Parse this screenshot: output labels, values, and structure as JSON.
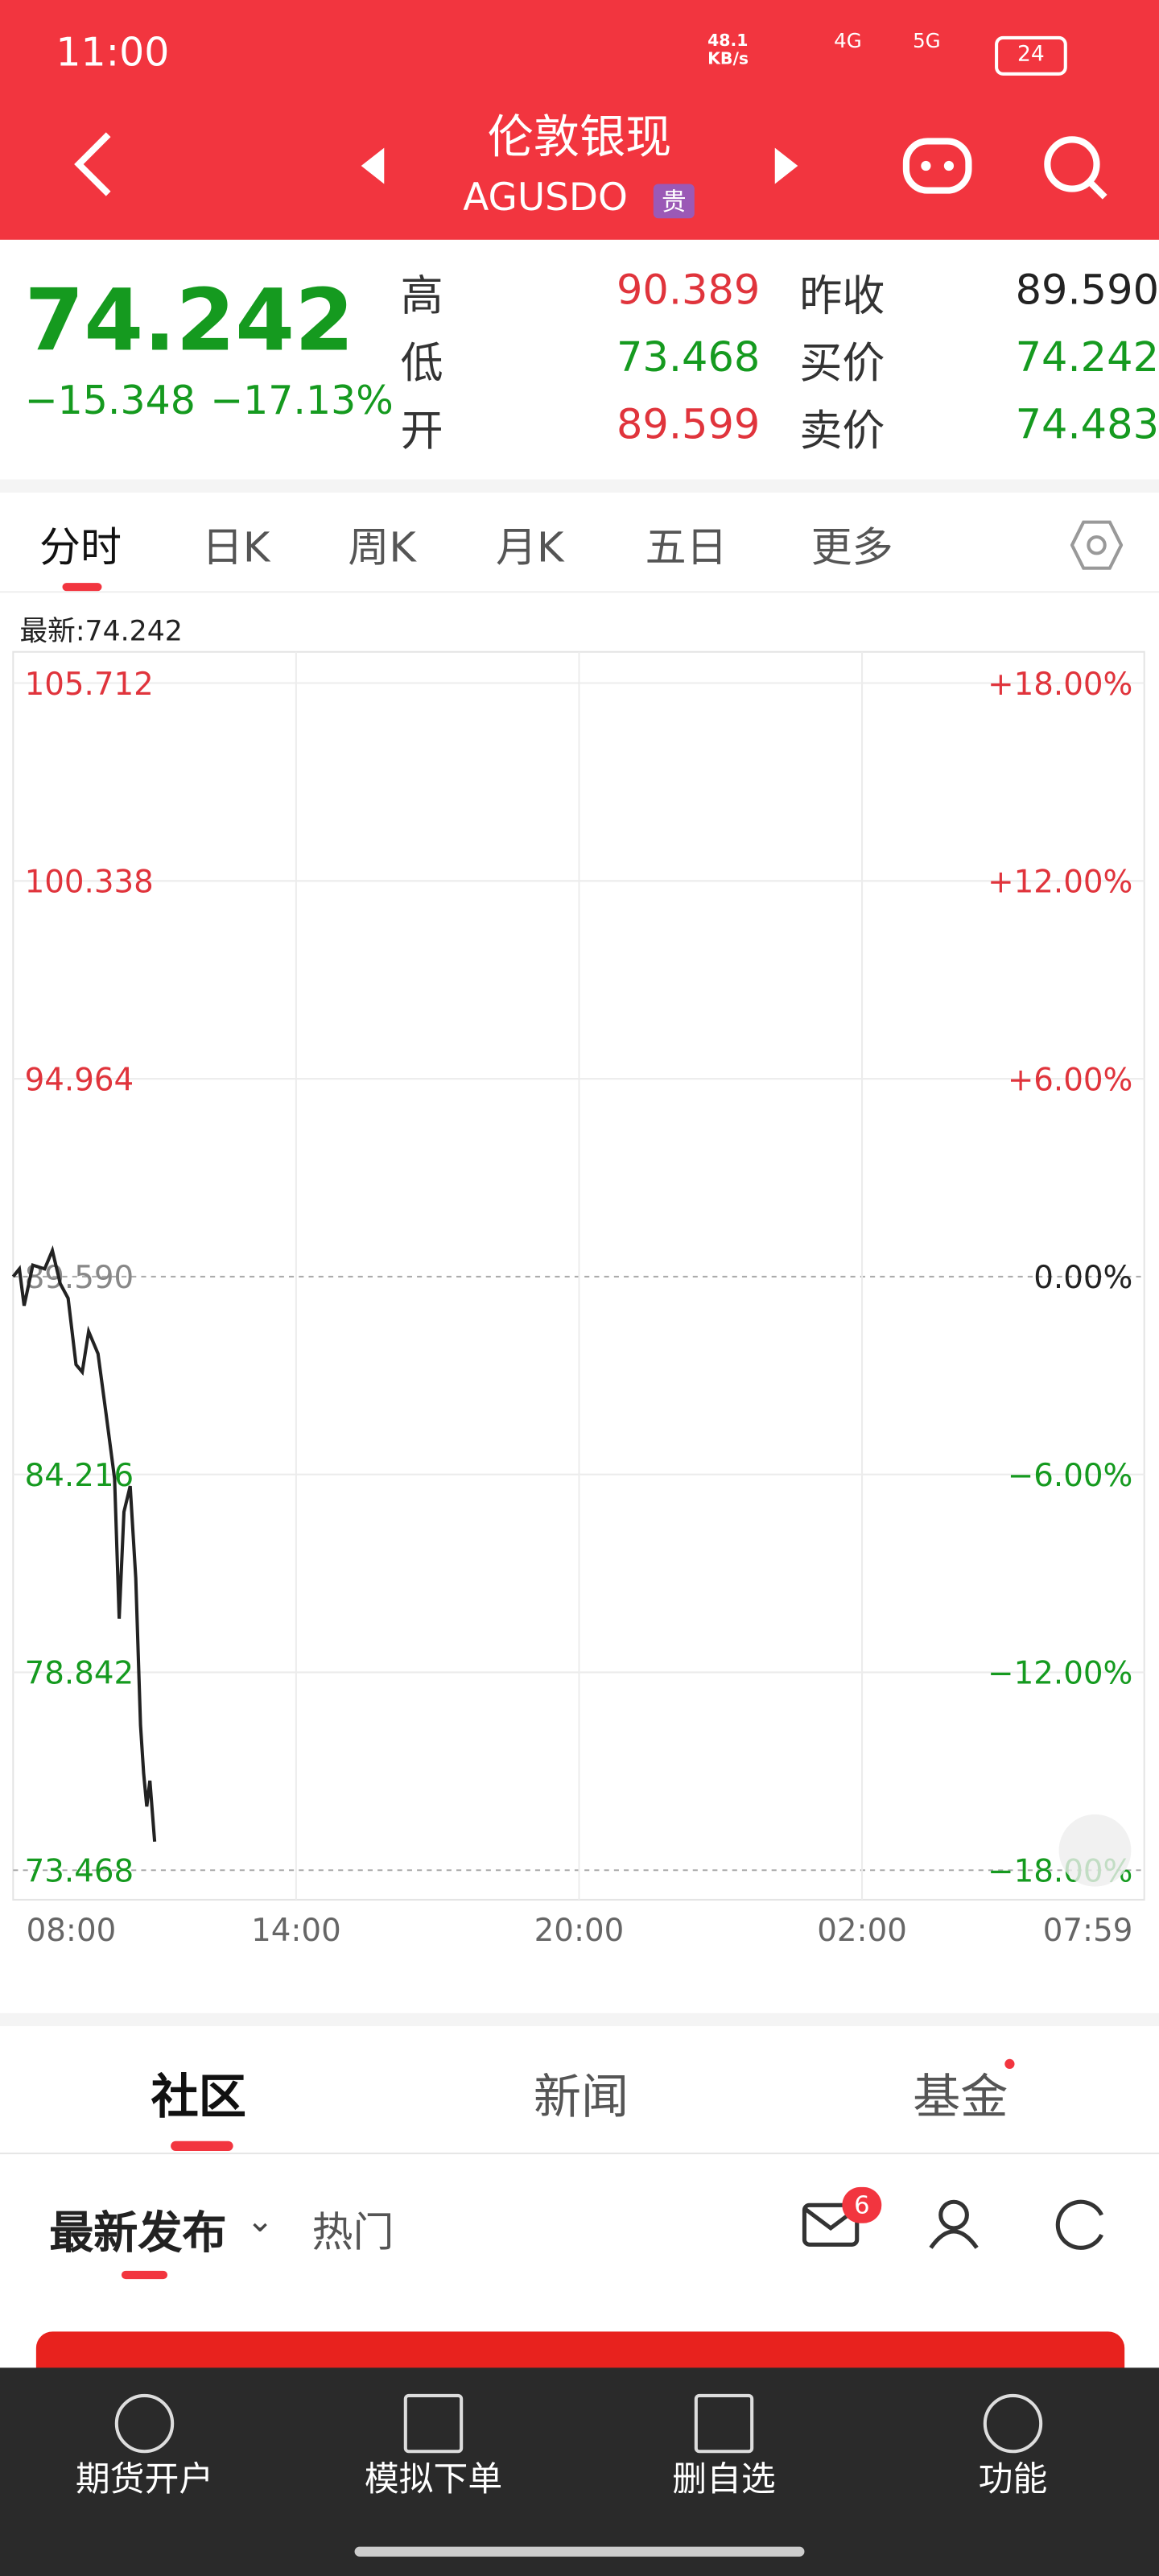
{
  "status": {
    "time": "11:00",
    "speed": "48.1\nKB/s",
    "net1": "4G",
    "net2": "5G",
    "battery": "24"
  },
  "header": {
    "title": "伦敦银现",
    "code": "AGUSDO",
    "tag": "贵"
  },
  "quote": {
    "price": "74.242",
    "change": "−15.348",
    "change_pct": "−17.13%",
    "stats": [
      {
        "label": "高",
        "value": "90.389"
      },
      {
        "label": "昨收",
        "value": "89.590"
      },
      {
        "label": "低",
        "value": "73.468"
      },
      {
        "label": "买价",
        "value": "74.242"
      },
      {
        "label": "开",
        "value": "89.599"
      },
      {
        "label": "卖价",
        "value": "74.483"
      }
    ]
  },
  "tabs": [
    "分时",
    "日K",
    "周K",
    "月K",
    "五日",
    "更多"
  ],
  "latest": "最新:74.242",
  "chart_data": {
    "type": "line",
    "color": "#222222",
    "grid": true,
    "x": [
      "08:00",
      "08:08",
      "08:14",
      "08:25",
      "08:40",
      "08:50",
      "09:00",
      "09:10",
      "09:20",
      "09:28",
      "09:36",
      "09:48",
      "09:58",
      "10:09",
      "10:15",
      "10:21",
      "10:29",
      "10:36",
      "10:42",
      "10:46",
      "10:50",
      "10:54",
      "11:00"
    ],
    "values": [
      89.59,
      89.8,
      88.8,
      89.9,
      89.8,
      90.3,
      89.4,
      89.0,
      87.2,
      87.0,
      88.1,
      87.5,
      85.9,
      84.1,
      80.3,
      83.2,
      83.9,
      81.4,
      77.4,
      76.1,
      75.2,
      75.9,
      74.242
    ],
    "xlim": [
      "08:00",
      "07:59"
    ],
    "xticks": [
      "08:00",
      "14:00",
      "20:00",
      "02:00",
      "07:59"
    ],
    "ylim": [
      73.468,
      105.712
    ],
    "yticks": [
      105.712,
      100.338,
      94.964,
      {
        "value": 89.59,
        "label": "89.590"
      },
      84.216,
      78.842,
      73.468
    ],
    "y2lim": [
      -18,
      18
    ],
    "y2ticks": [
      {
        "value": 18,
        "label": "+18.00%"
      },
      {
        "value": 12,
        "label": "+12.00%"
      },
      {
        "value": 6,
        "label": "+6.00%"
      },
      {
        "value": 0,
        "label": "0.00%"
      },
      {
        "value": -6,
        "label": "−6.00%"
      },
      {
        "value": -12,
        "label": "−12.00%"
      },
      {
        "value": -18,
        "label": "−18.00%"
      }
    ]
  },
  "community": {
    "tabs": [
      "社区",
      "新闻",
      "基金"
    ],
    "filters": [
      "最新发布",
      "热门"
    ],
    "badge": "6"
  },
  "nav": [
    "期货开户",
    "模拟下单",
    "删自选",
    "功能"
  ]
}
